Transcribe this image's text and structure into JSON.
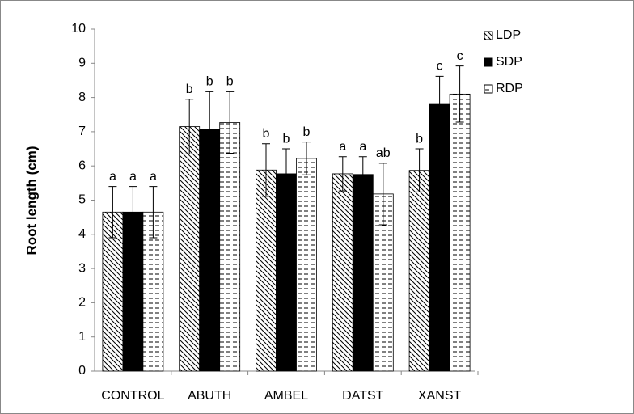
{
  "chart_data": {
    "type": "bar",
    "ylabel": "Root length (cm)",
    "categories": [
      "CONTROL",
      "ABUTH",
      "AMBEL",
      "DATST",
      "XANST"
    ],
    "series": [
      {
        "name": "LDP",
        "color": "#000000",
        "pattern": "diagonal",
        "values": [
          4.65,
          7.15,
          5.88,
          5.77,
          5.87
        ],
        "errors": [
          0.75,
          0.8,
          0.77,
          0.5,
          0.63
        ],
        "letters": [
          "a",
          "b",
          "b",
          "a",
          "b"
        ]
      },
      {
        "name": "SDP",
        "color": "#000000",
        "pattern": "solid",
        "values": [
          4.65,
          7.07,
          5.77,
          5.75,
          7.8
        ],
        "errors": [
          0.75,
          1.1,
          0.73,
          0.52,
          0.82
        ],
        "letters": [
          "a",
          "b",
          "b",
          "a",
          "c"
        ]
      },
      {
        "name": "RDP",
        "color": "#000000",
        "pattern": "dashes",
        "values": [
          4.65,
          7.27,
          6.22,
          5.18,
          8.1
        ],
        "errors": [
          0.75,
          0.9,
          0.48,
          0.9,
          0.82
        ],
        "letters": [
          "a",
          "b",
          "b",
          "ab",
          "c"
        ]
      }
    ],
    "ylim": [
      0,
      10
    ],
    "yticks": [
      0,
      1,
      2,
      3,
      4,
      5,
      6,
      7,
      8,
      9,
      10
    ],
    "grid": false,
    "legend": "top-right"
  }
}
